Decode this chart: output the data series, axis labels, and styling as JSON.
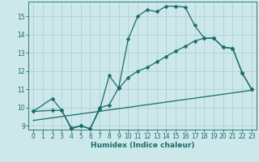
{
  "xlabel": "Humidex (Indice chaleur)",
  "background_color": "#cce8ea",
  "grid_color": "#aacccc",
  "line_color": "#1a6b6b",
  "xlim": [
    -0.5,
    23.5
  ],
  "ylim": [
    8.8,
    15.8
  ],
  "yticks": [
    9,
    10,
    11,
    12,
    13,
    14,
    15
  ],
  "xticks": [
    0,
    1,
    2,
    3,
    4,
    5,
    6,
    7,
    8,
    9,
    10,
    11,
    12,
    13,
    14,
    15,
    16,
    17,
    18,
    19,
    20,
    21,
    22,
    23
  ],
  "line1_x": [
    0,
    2,
    3,
    4,
    5,
    6,
    7,
    8,
    9,
    10,
    11,
    12,
    13,
    14,
    15,
    16,
    17,
    18,
    19,
    20,
    21,
    22,
    23
  ],
  "line1_y": [
    9.8,
    10.5,
    9.85,
    8.9,
    9.0,
    8.85,
    10.0,
    10.15,
    11.1,
    13.75,
    15.0,
    15.35,
    15.25,
    15.55,
    15.55,
    15.5,
    14.5,
    13.8,
    13.8,
    13.3,
    13.25,
    11.9,
    11.0
  ],
  "line2_x": [
    0,
    2,
    3,
    4,
    5,
    6,
    7,
    8,
    9,
    10,
    11,
    12,
    13,
    14,
    15,
    16,
    17,
    18,
    19,
    20,
    21,
    22,
    23
  ],
  "line2_y": [
    9.8,
    9.85,
    9.85,
    8.85,
    9.0,
    8.85,
    9.9,
    11.75,
    11.05,
    11.65,
    12.0,
    12.2,
    12.5,
    12.8,
    13.1,
    13.35,
    13.65,
    13.8,
    13.8,
    13.3,
    13.25,
    11.9,
    11.0
  ],
  "line3_x": [
    0,
    23
  ],
  "line3_y": [
    9.3,
    10.95
  ],
  "marker_size": 2.5,
  "line_width": 0.9
}
